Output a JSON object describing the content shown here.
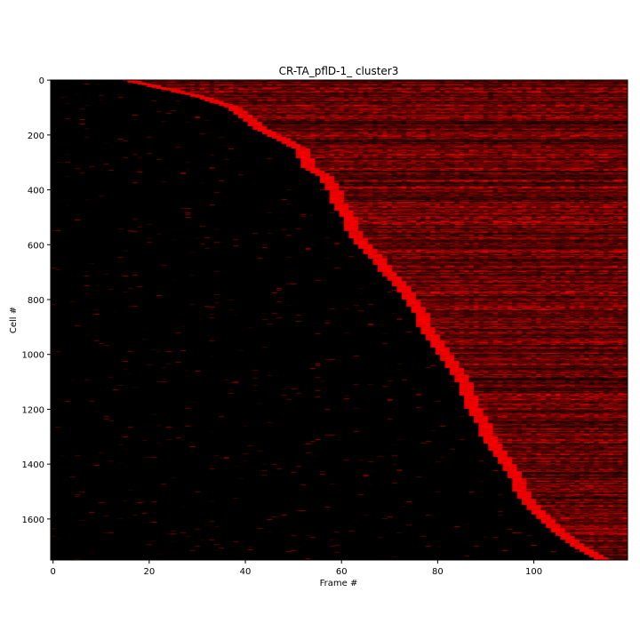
{
  "chart_data": {
    "type": "heatmap",
    "title": "CR-TA_pflD-1_ cluster3",
    "xlabel": "Frame #",
    "ylabel": "Cell #",
    "xlim": [
      -0.5,
      119.5
    ],
    "ylim": [
      1749.5,
      -0.5
    ],
    "n_frames": 120,
    "n_cells": 1750,
    "x_ticks": [
      0,
      20,
      40,
      60,
      80,
      100
    ],
    "y_ticks": [
      0,
      200,
      400,
      600,
      800,
      1000,
      1200,
      1400,
      1600
    ],
    "colormap": [
      "#000000",
      "#ff0000"
    ],
    "value_range": [
      0,
      1
    ],
    "onset_profile": {
      "cell": [
        0,
        60,
        100,
        180,
        250,
        320,
        350,
        400,
        450,
        500,
        550,
        600,
        650,
        700,
        750,
        800,
        850,
        900,
        950,
        1000,
        1050,
        1100,
        1150,
        1200,
        1250,
        1300,
        1350,
        1400,
        1450,
        1500,
        1550,
        1600,
        1650,
        1700,
        1749
      ],
      "onset_frame": [
        14,
        29,
        36,
        42,
        50,
        52,
        55,
        57,
        58,
        60,
        61,
        63,
        66,
        68,
        71,
        73,
        75,
        76,
        78,
        80,
        82,
        84,
        85,
        86,
        88,
        89,
        91,
        93,
        95,
        96,
        98,
        101,
        104,
        108,
        113
      ]
    }
  }
}
